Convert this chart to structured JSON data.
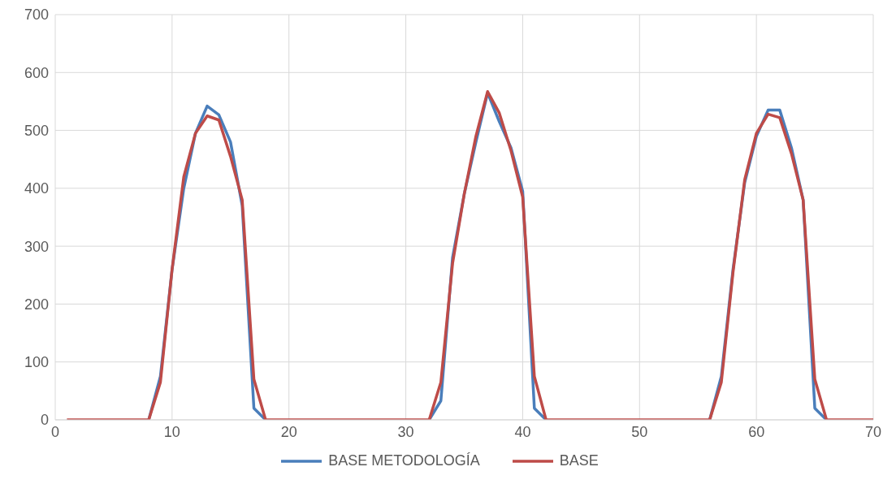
{
  "chart_data": {
    "type": "line",
    "x": [
      1,
      2,
      3,
      4,
      5,
      6,
      7,
      8,
      9,
      10,
      11,
      12,
      13,
      14,
      15,
      16,
      17,
      18,
      19,
      20,
      21,
      22,
      23,
      24,
      25,
      26,
      27,
      28,
      29,
      30,
      31,
      32,
      33,
      34,
      35,
      36,
      37,
      38,
      39,
      40,
      41,
      42,
      43,
      44,
      45,
      46,
      47,
      48,
      49,
      50,
      51,
      52,
      53,
      54,
      55,
      56,
      57,
      58,
      59,
      60,
      61,
      62,
      63,
      64,
      65,
      66,
      67,
      68,
      69,
      70
    ],
    "series": [
      {
        "name": "BASE METODOLOGÍA",
        "color": "#4a7ebb",
        "values": [
          null,
          null,
          null,
          null,
          null,
          null,
          null,
          0,
          75,
          260,
          400,
          495,
          542,
          527,
          480,
          370,
          20,
          0,
          null,
          null,
          null,
          null,
          null,
          null,
          null,
          null,
          null,
          null,
          null,
          null,
          null,
          0,
          33,
          280,
          390,
          480,
          565,
          515,
          470,
          395,
          20,
          0,
          null,
          null,
          null,
          null,
          null,
          null,
          null,
          null,
          null,
          null,
          null,
          null,
          null,
          0,
          75,
          260,
          410,
          490,
          535,
          535,
          470,
          380,
          20,
          0,
          null,
          null,
          null,
          null
        ]
      },
      {
        "name": "BASE",
        "color": "#be4b48",
        "values": [
          0,
          0,
          0,
          0,
          0,
          0,
          0,
          0,
          65,
          260,
          420,
          495,
          525,
          518,
          455,
          380,
          70,
          0,
          0,
          0,
          0,
          0,
          0,
          0,
          0,
          0,
          0,
          0,
          0,
          0,
          0,
          0,
          65,
          270,
          390,
          490,
          567,
          530,
          465,
          385,
          75,
          0,
          0,
          0,
          0,
          0,
          0,
          0,
          0,
          0,
          0,
          0,
          0,
          0,
          0,
          0,
          65,
          255,
          415,
          495,
          528,
          522,
          460,
          380,
          70,
          0,
          0,
          0,
          0,
          0
        ]
      }
    ],
    "xlim": [
      0,
      70
    ],
    "xticks": [
      0,
      10,
      20,
      30,
      40,
      50,
      60,
      70
    ],
    "ylim": [
      0,
      700
    ],
    "yticks": [
      0,
      100,
      200,
      300,
      400,
      500,
      600,
      700
    ],
    "grid": true,
    "legend": "bottom",
    "marker": "none",
    "line_style": "solid"
  }
}
